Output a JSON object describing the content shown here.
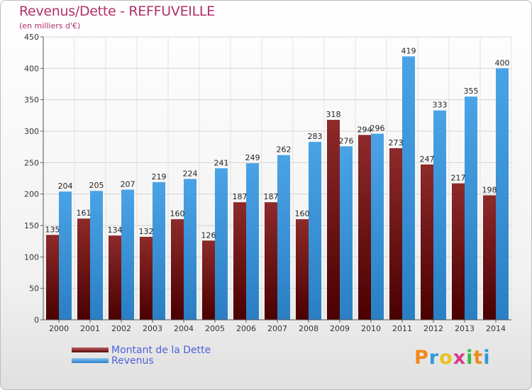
{
  "title": "Revenus/Dette - REFFUVEILLE",
  "subtitle": "(en milliers d'€)",
  "logo_text": "Proxiti",
  "chart_data": {
    "type": "bar",
    "categories": [
      "2000",
      "2001",
      "2002",
      "2003",
      "2004",
      "2005",
      "2006",
      "2007",
      "2008",
      "2009",
      "2010",
      "2011",
      "2012",
      "2013",
      "2014"
    ],
    "series": [
      {
        "name": "Montant de la Dette",
        "color": "#7a1818",
        "values": [
          135,
          161,
          134,
          132,
          160,
          126,
          187,
          187,
          160,
          318,
          294,
          273,
          247,
          217,
          198
        ]
      },
      {
        "name": "Revenus",
        "color": "#3a95dd",
        "values": [
          204,
          205,
          207,
          219,
          224,
          241,
          249,
          262,
          283,
          276,
          296,
          419,
          333,
          355,
          400
        ]
      }
    ],
    "ylim": [
      0,
      450
    ],
    "yticks": [
      0,
      50,
      100,
      150,
      200,
      250,
      300,
      350,
      400,
      450
    ],
    "grid": true,
    "legend_position": "bottom-left"
  }
}
